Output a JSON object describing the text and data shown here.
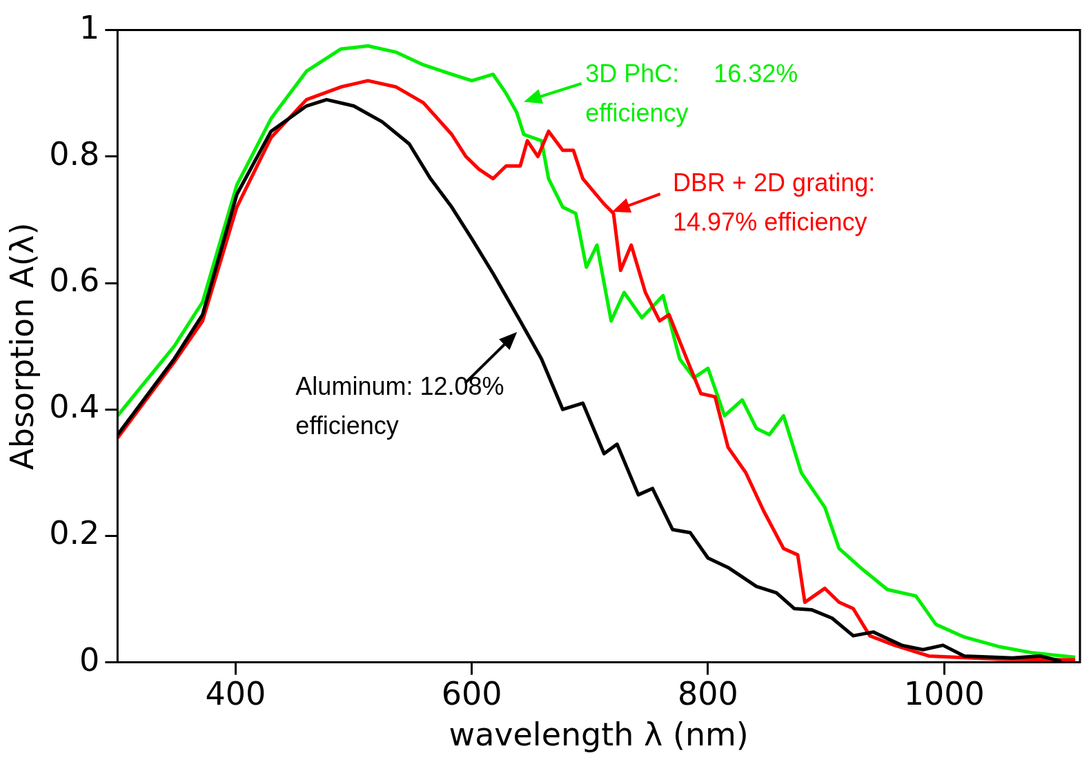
{
  "chart_data": {
    "type": "line",
    "xlabel": "wavelength λ (nm)",
    "ylabel": "Absorption A(λ)",
    "xlim": [
      300,
      1115
    ],
    "ylim": [
      0,
      1
    ],
    "xticks": [
      400,
      600,
      800,
      1000
    ],
    "yticks": [
      0,
      0.2,
      0.4,
      0.6,
      0.8,
      1
    ],
    "marker": "none",
    "line_style": "solid",
    "legend": false,
    "series": [
      {
        "color": "#000000",
        "x": [
          300,
          348,
          372,
          401,
          430,
          460,
          477,
          500,
          524,
          547,
          565,
          583,
          600,
          618,
          641,
          659,
          677,
          694,
          712,
          723,
          741,
          753,
          770,
          785,
          800,
          817,
          841,
          858,
          873,
          888,
          905,
          923,
          940,
          964,
          982,
          999,
          1017,
          1058,
          1081,
          1099
        ],
        "values": [
          0.36,
          0.48,
          0.55,
          0.74,
          0.84,
          0.88,
          0.89,
          0.88,
          0.855,
          0.82,
          0.765,
          0.72,
          0.67,
          0.615,
          0.54,
          0.48,
          0.4,
          0.41,
          0.33,
          0.345,
          0.265,
          0.275,
          0.21,
          0.205,
          0.165,
          0.15,
          0.12,
          0.11,
          0.085,
          0.083,
          0.07,
          0.042,
          0.048,
          0.027,
          0.02,
          0.027,
          0.01,
          0.007,
          0.01,
          0.002
        ]
      },
      {
        "color": "#ff0000",
        "x": [
          300,
          348,
          372,
          401,
          430,
          460,
          489,
          512,
          536,
          559,
          583,
          595,
          606,
          618,
          629,
          641,
          647,
          656,
          665,
          677,
          686,
          694,
          712,
          720,
          726,
          735,
          747,
          759,
          767,
          782,
          794,
          806,
          817,
          832,
          847,
          864,
          876,
          882,
          899,
          911,
          923,
          937,
          958,
          987,
          1046,
          1111
        ],
        "values": [
          0.355,
          0.475,
          0.54,
          0.72,
          0.83,
          0.89,
          0.91,
          0.92,
          0.91,
          0.885,
          0.835,
          0.8,
          0.78,
          0.765,
          0.785,
          0.785,
          0.825,
          0.8,
          0.84,
          0.81,
          0.81,
          0.765,
          0.725,
          0.71,
          0.62,
          0.66,
          0.585,
          0.54,
          0.55,
          0.48,
          0.425,
          0.42,
          0.34,
          0.3,
          0.24,
          0.18,
          0.17,
          0.095,
          0.117,
          0.095,
          0.085,
          0.042,
          0.027,
          0.01,
          0.005,
          0.004
        ]
      },
      {
        "color": "#00ee00",
        "x": [
          300,
          348,
          372,
          401,
          430,
          460,
          489,
          512,
          536,
          559,
          583,
          600,
          618,
          629,
          638,
          644,
          659,
          665,
          677,
          688,
          697,
          706,
          718,
          729,
          744,
          762,
          776,
          788,
          800,
          814,
          829,
          841,
          852,
          864,
          879,
          899,
          911,
          929,
          952,
          976,
          993,
          1017,
          1046,
          1075,
          1111
        ],
        "values": [
          0.39,
          0.5,
          0.57,
          0.755,
          0.86,
          0.935,
          0.97,
          0.975,
          0.965,
          0.945,
          0.93,
          0.92,
          0.93,
          0.9,
          0.87,
          0.835,
          0.825,
          0.765,
          0.72,
          0.71,
          0.625,
          0.66,
          0.54,
          0.585,
          0.545,
          0.58,
          0.48,
          0.45,
          0.465,
          0.39,
          0.415,
          0.37,
          0.36,
          0.39,
          0.3,
          0.245,
          0.18,
          0.15,
          0.115,
          0.105,
          0.06,
          0.04,
          0.025,
          0.015,
          0.008
        ]
      }
    ],
    "annotations": [
      "Aluminum: 12.08%\nefficiency",
      "DBR + 2D grating:\n14.97% efficiency",
      "3D PhC:     16.32%\nefficiency"
    ]
  }
}
